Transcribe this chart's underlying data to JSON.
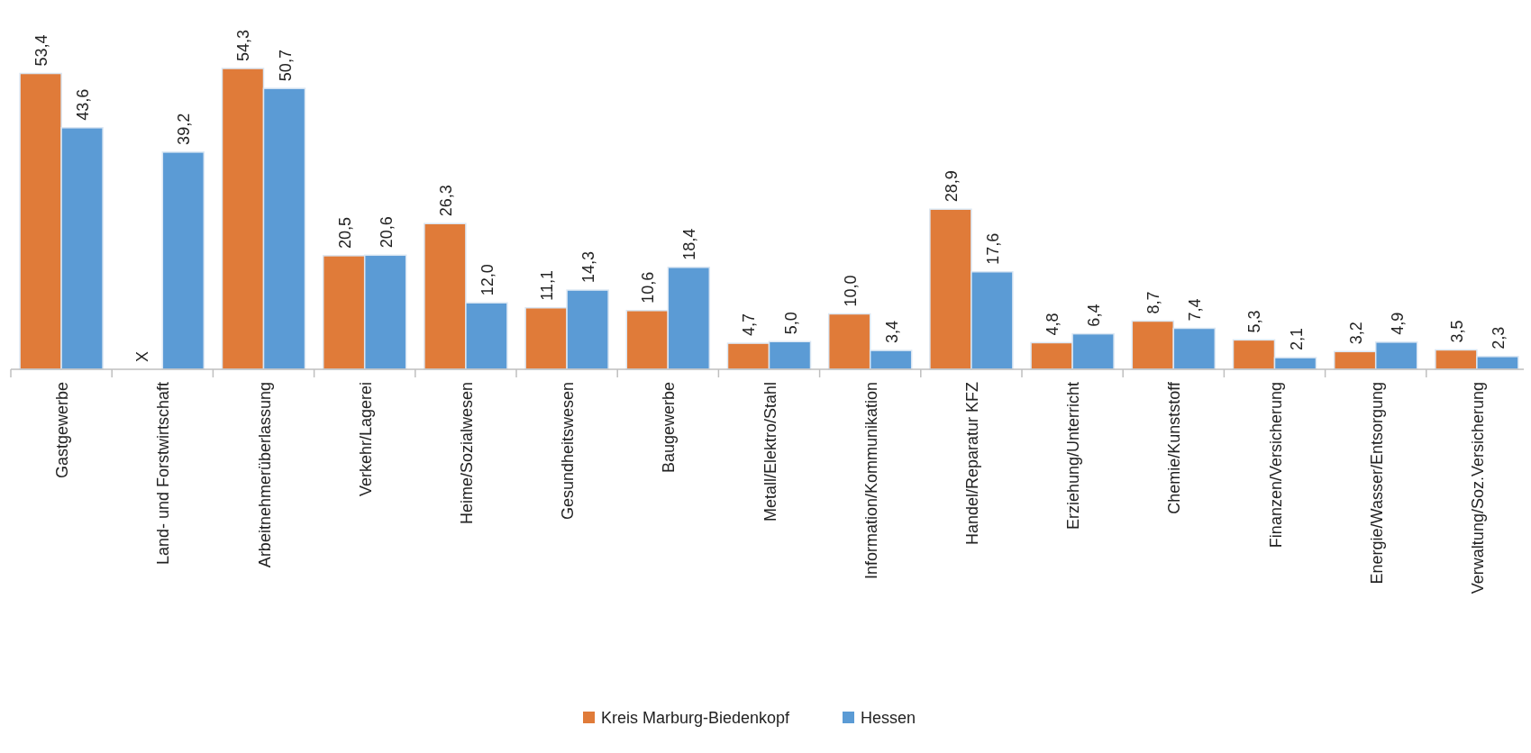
{
  "chart_data": {
    "type": "bar",
    "categories": [
      "Gastgewerbe",
      "Land- und Forstwirtschaft",
      "Arbeitnehmerüberlassung",
      "Verkehr/Lagerei",
      "Heime/Sozialwesen",
      "Gesundheitswesen",
      "Baugewerbe",
      "Metall/Elektro/Stahl",
      "Information/Kommunikation",
      "Handel/Reparatur KFZ",
      "Erziehung/Unterricht",
      "Chemie/Kunststoff",
      "Finanzen/Versicherung",
      "Energie/Wasser/Entsorgung",
      "Verwaltung/Soz.Versicherung"
    ],
    "series": [
      {
        "name": "Kreis Marburg-Biedenkopf",
        "color": "#e07b39",
        "values": [
          53.4,
          null,
          54.3,
          20.5,
          26.3,
          11.1,
          10.6,
          4.7,
          10.0,
          28.9,
          4.8,
          8.7,
          5.3,
          3.2,
          3.5
        ],
        "value_labels": [
          "53,4",
          "X",
          "54,3",
          "20,5",
          "26,3",
          "11,1",
          "10,6",
          "4,7",
          "10,0",
          "28,9",
          "4,8",
          "8,7",
          "5,3",
          "3,2",
          "3,5"
        ]
      },
      {
        "name": "Hessen",
        "color": "#5b9bd5",
        "values": [
          43.6,
          39.2,
          50.7,
          20.6,
          12.0,
          14.3,
          18.4,
          5.0,
          3.4,
          17.6,
          6.4,
          7.4,
          2.1,
          4.9,
          2.3
        ],
        "value_labels": [
          "43,6",
          "39,2",
          "50,7",
          "20,6",
          "12,0",
          "14,3",
          "18,4",
          "5,0",
          "3,4",
          "17,6",
          "6,4",
          "7,4",
          "2,1",
          "4,9",
          "2,3"
        ]
      }
    ],
    "legend": "bottom"
  }
}
